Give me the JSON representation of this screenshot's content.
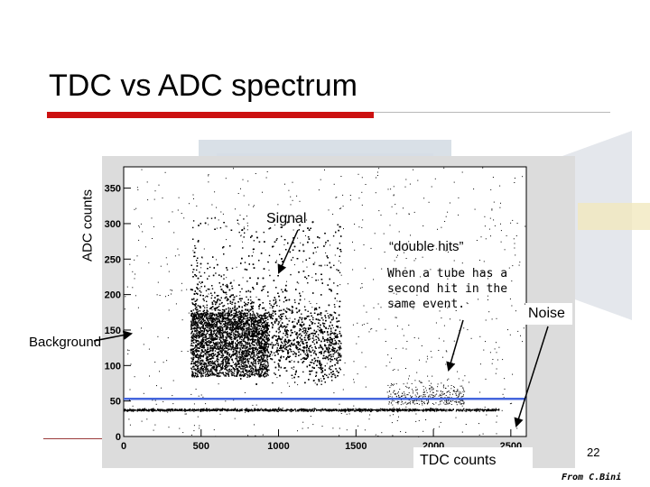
{
  "slide": {
    "title": "TDC vs ADC spectrum",
    "page_number": "22",
    "credit": "From C.Bini"
  },
  "annotations": {
    "signal": "Signal",
    "double_hits": "“double hits”",
    "second_hit": "When a tube has a second hit in the same event.",
    "noise": "Noise",
    "background": "Background"
  },
  "colors": {
    "accent_red": "#cc1111",
    "points": "#000000",
    "threshold_line": "#4466dd",
    "panel_bg": "#dcdcdc"
  },
  "chart_data": {
    "type": "scatter",
    "xlabel": "TDC counts",
    "ylabel": "ADC counts",
    "xlim": [
      0,
      2600
    ],
    "ylim": [
      0,
      380
    ],
    "x_ticks": [
      0,
      500,
      1000,
      1500,
      2000,
      2500
    ],
    "y_ticks": [
      0,
      50,
      100,
      150,
      200,
      250,
      300,
      350
    ],
    "x_tick_labels": [
      "0",
      "500",
      "1000",
      "1500",
      "2000",
      "2500"
    ],
    "y_tick_labels": [
      "0",
      "50",
      "100",
      "150",
      "200",
      "250",
      "300",
      "350"
    ],
    "threshold_line": {
      "y": 53
    },
    "regions": [
      {
        "name": "signal-core",
        "x_range": [
          430,
          1400
        ],
        "y_range": [
          60,
          320
        ],
        "density": "high"
      },
      {
        "name": "noise-band",
        "x_range": [
          0,
          2420
        ],
        "y": 38,
        "density": "band"
      },
      {
        "name": "double-hits",
        "x_range": [
          1700,
          2200
        ],
        "y_range": [
          45,
          110
        ],
        "density": "low"
      },
      {
        "name": "background",
        "x_range": [
          0,
          2600
        ],
        "y_range": [
          0,
          380
        ],
        "density": "sparse"
      }
    ],
    "grid": false
  }
}
